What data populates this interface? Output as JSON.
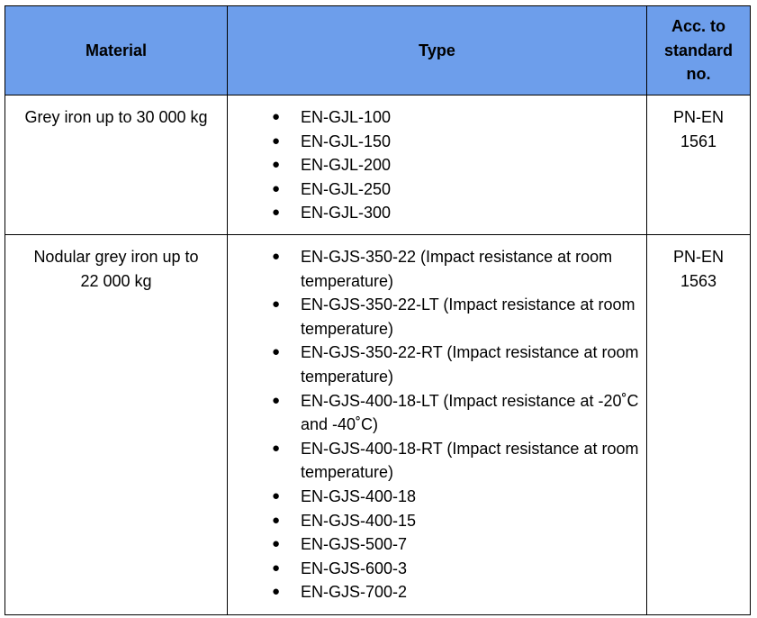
{
  "headers": {
    "material": "Material",
    "type": "Type",
    "standard": "Acc. to standard no."
  },
  "bullet_glyph": "●",
  "rows": [
    {
      "material": "Grey iron up to 30 000 kg",
      "types": [
        "EN-GJL-100",
        "EN-GJL-150",
        "EN-GJL-200",
        "EN-GJL-250",
        "EN-GJL-300"
      ],
      "standard": "PN-EN 1561"
    },
    {
      "material": "Nodular grey iron up to 22 000 kg",
      "types": [
        "EN-GJS-350-22 (Impact resistance at room temperature)",
        "EN-GJS-350-22-LT (Impact resistance at room temperature)",
        "EN-GJS-350-22-RT (Impact resistance at room temperature)",
        "EN-GJS-400-18-LT (Impact resistance at -20˚C and -40˚C)",
        "EN-GJS-400-18-RT (Impact resistance at room temperature)",
        "EN-GJS-400-18",
        "EN-GJS-400-15",
        "EN-GJS-500-7",
        "EN-GJS-600-3",
        "EN-GJS-700-2"
      ],
      "standard": "PN-EN 1563"
    }
  ]
}
